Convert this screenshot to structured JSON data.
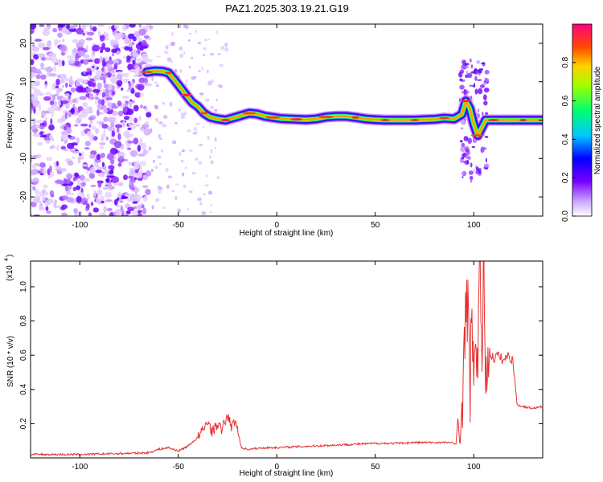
{
  "title": "PAZ1.2025.303.19.21.G19",
  "chart_data": [
    {
      "type": "heatmap",
      "name": "spectrogram",
      "xlabel": "Height of straight line (km)",
      "ylabel": "Frequency (Hz)",
      "xlim": [
        -125,
        135
      ],
      "ylim": [
        -25,
        25
      ],
      "xticks": [
        "-100",
        "-50",
        "0",
        "50",
        "100"
      ],
      "xtick_values": [
        -100,
        -50,
        0,
        50,
        100
      ],
      "yticks": [
        "-20",
        "-10",
        "0",
        "10",
        "20"
      ],
      "ytick_values": [
        -20,
        -10,
        0,
        10,
        20
      ],
      "ridge": {
        "x": [
          -66,
          -62,
          -58,
          -55,
          -52,
          -49,
          -46,
          -43,
          -40,
          -37,
          -34,
          -30,
          -26,
          -22,
          -18,
          -14,
          -10,
          -6,
          -2,
          2,
          6,
          10,
          15,
          20,
          25,
          30,
          35,
          40,
          45,
          50,
          55,
          60,
          65,
          70,
          75,
          80,
          85,
          90,
          94,
          96,
          98,
          100,
          102,
          104,
          106,
          110,
          115,
          120,
          125,
          130,
          135
        ],
        "y": [
          12.5,
          12.8,
          12.7,
          12.3,
          10.5,
          8.5,
          6.5,
          4.6,
          3.5,
          1.8,
          0.8,
          0.3,
          0.0,
          0.6,
          1.2,
          1.8,
          1.6,
          1.0,
          0.7,
          0.4,
          0.3,
          0.2,
          0.1,
          0.3,
          0.8,
          1.0,
          1.0,
          0.7,
          0.3,
          0.1,
          0.0,
          0.0,
          0.0,
          0.0,
          0.1,
          0.2,
          0.5,
          0.3,
          1.5,
          5.0,
          3.0,
          -1.0,
          -4.0,
          -2.0,
          0.0,
          0.0,
          0.0,
          0.0,
          0.0,
          0.0,
          0.0
        ]
      },
      "noise_region_x": [
        -125,
        -65
      ]
    },
    {
      "type": "line",
      "name": "snr",
      "xlabel": "Height of straight line (km)",
      "ylabel": "SNR (10 * v/v)",
      "scale_label": "(x10",
      "scale_exp": "4",
      "xlim": [
        -125,
        135
      ],
      "ylim": [
        0,
        1.15
      ],
      "xticks": [
        "-100",
        "-50",
        "0",
        "50",
        "100"
      ],
      "xtick_values": [
        -100,
        -50,
        0,
        50,
        100
      ],
      "yticks": [
        "0.2",
        "0.4",
        "0.6",
        "0.8",
        "1.0"
      ],
      "ytick_values": [
        0.2,
        0.4,
        0.6,
        0.8,
        1.0
      ],
      "color": "#e63232",
      "x": [
        -125,
        -100,
        -80,
        -65,
        -60,
        -55,
        -50,
        -45,
        -40,
        -37,
        -35,
        -33,
        -30,
        -28,
        -25,
        -23,
        -21,
        -18,
        -15,
        -10,
        -5,
        0,
        10,
        20,
        30,
        40,
        50,
        60,
        70,
        80,
        88,
        91,
        92,
        93,
        95,
        97,
        98,
        99,
        100,
        101,
        102,
        103,
        104,
        105,
        106,
        108,
        110,
        112,
        115,
        118,
        120,
        122,
        125,
        130,
        135
      ],
      "y": [
        0.02,
        0.02,
        0.025,
        0.03,
        0.05,
        0.06,
        0.04,
        0.07,
        0.12,
        0.17,
        0.22,
        0.15,
        0.2,
        0.16,
        0.25,
        0.18,
        0.22,
        0.06,
        0.05,
        0.055,
        0.06,
        0.06,
        0.065,
        0.07,
        0.075,
        0.08,
        0.085,
        0.085,
        0.09,
        0.09,
        0.09,
        0.08,
        0.25,
        0.05,
        0.6,
        0.95,
        0.3,
        1.02,
        0.2,
        0.9,
        0.5,
        1.15,
        0.6,
        1.1,
        0.55,
        0.62,
        0.58,
        0.6,
        0.57,
        0.6,
        0.56,
        0.31,
        0.3,
        0.29,
        0.3
      ]
    }
  ],
  "colorbar": {
    "label": "Normalized spectral amplitude",
    "ticks": [
      "0.0",
      "0.2",
      "0.4",
      "0.6",
      "0.8"
    ],
    "tick_values": [
      0.0,
      0.2,
      0.4,
      0.6,
      0.8
    ],
    "range": [
      0,
      1
    ]
  }
}
